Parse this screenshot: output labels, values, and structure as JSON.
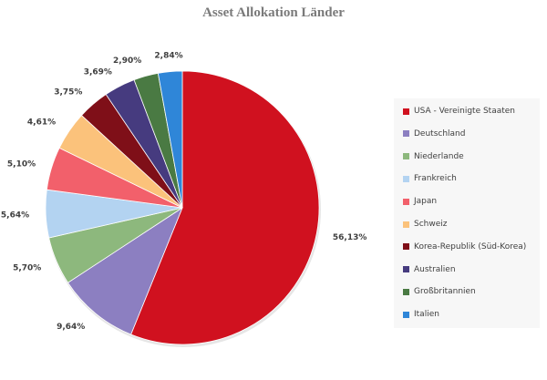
{
  "chart_data": {
    "type": "pie",
    "title": "Asset Allokation Länder",
    "slices": [
      {
        "label": "USA - Vereinigte Staaten",
        "value": 56.13,
        "value_label": "56,13%",
        "color": "#d0111f"
      },
      {
        "label": "Deutschland",
        "value": 9.64,
        "value_label": "9,64%",
        "color": "#8c7fc1"
      },
      {
        "label": "Niederlande",
        "value": 5.7,
        "value_label": "5,70%",
        "color": "#8db87d"
      },
      {
        "label": "Frankreich",
        "value": 5.64,
        "value_label": "5,64%",
        "color": "#b3d3f1"
      },
      {
        "label": "Japan",
        "value": 5.1,
        "value_label": "5,10%",
        "color": "#f2606b"
      },
      {
        "label": "Schweiz",
        "value": 4.61,
        "value_label": "4,61%",
        "color": "#fbc27b"
      },
      {
        "label": "Korea-Republik (Süd-Korea)",
        "value": 3.75,
        "value_label": "3,75%",
        "color": "#7f0f18"
      },
      {
        "label": "Australien",
        "value": 3.69,
        "value_label": "3,69%",
        "color": "#463b7f"
      },
      {
        "label": "Großbritannien",
        "value": 2.9,
        "value_label": "2,90%",
        "color": "#4a7a43"
      },
      {
        "label": "Italien",
        "value": 2.84,
        "value_label": "2,84%",
        "color": "#2f86d8"
      }
    ],
    "legend_position": "right",
    "start_angle": "top",
    "direction": "clockwise"
  }
}
